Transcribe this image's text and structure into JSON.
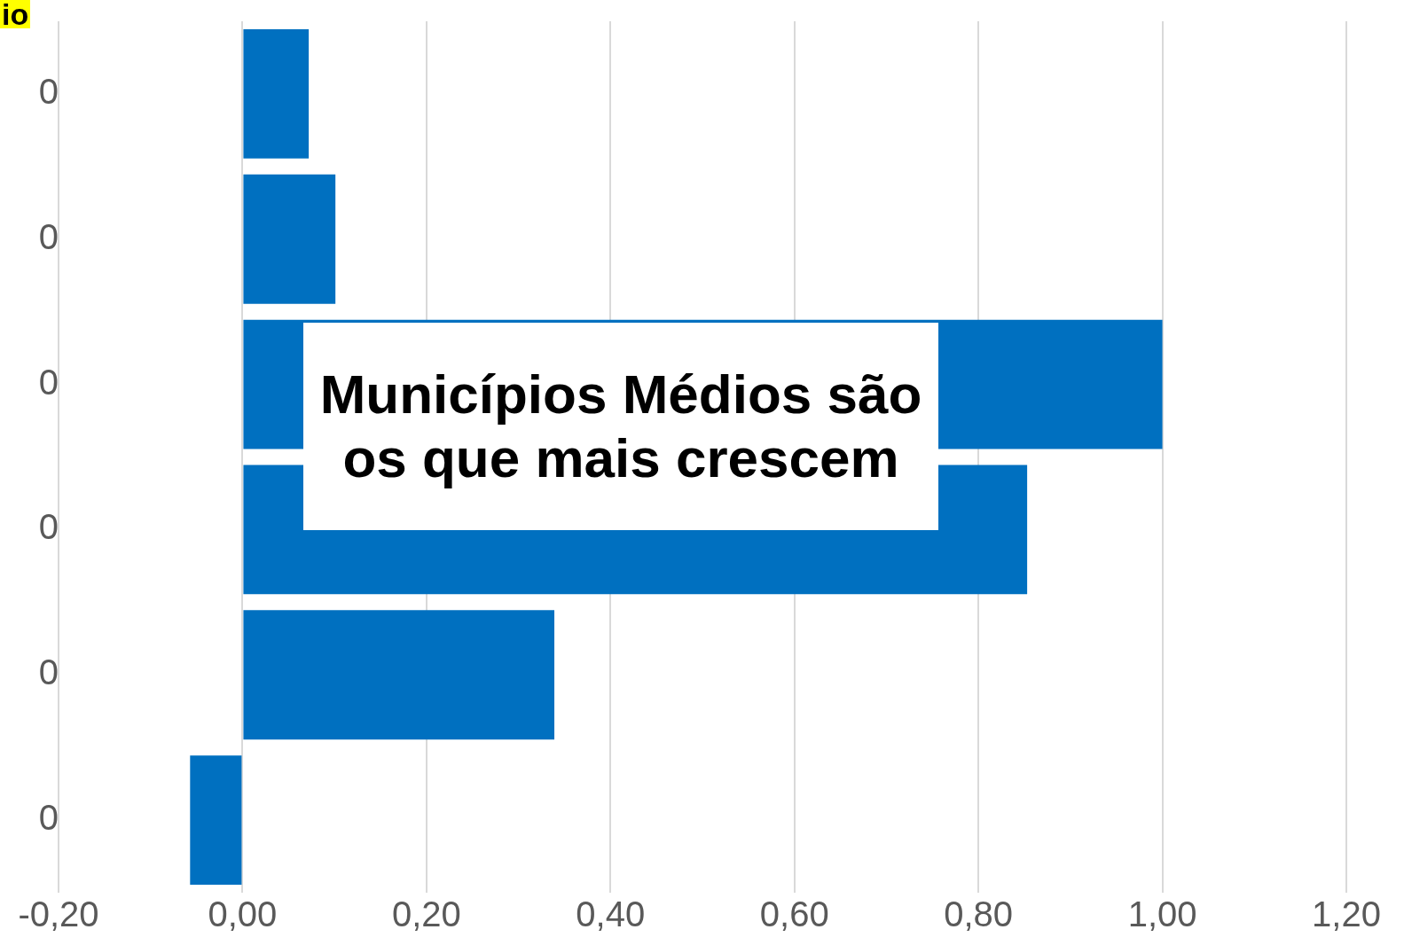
{
  "chart_data": {
    "type": "bar",
    "orientation": "horizontal",
    "title": "io",
    "annotations": [
      "Municípios Médios são os que mais crescem"
    ],
    "categories": [
      "0",
      "0",
      "0",
      "0",
      "0",
      "0"
    ],
    "values": [
      0.072,
      0.101,
      1.0,
      0.853,
      0.339,
      -0.057
    ],
    "color": "#0070c0",
    "xlim": [
      -0.2,
      1.2
    ],
    "xticks": [
      {
        "value": -0.2,
        "label": "-0,20"
      },
      {
        "value": 0,
        "label": "0,00"
      },
      {
        "value": 0.2,
        "label": "0,20"
      },
      {
        "value": 0.4,
        "label": "0,40"
      },
      {
        "value": 0.6,
        "label": "0,60"
      },
      {
        "value": 0.8,
        "label": "0,80"
      },
      {
        "value": 1.0,
        "label": "1,00"
      },
      {
        "value": 1.2,
        "label": "1,20"
      }
    ],
    "grid": "x",
    "legend": false
  }
}
